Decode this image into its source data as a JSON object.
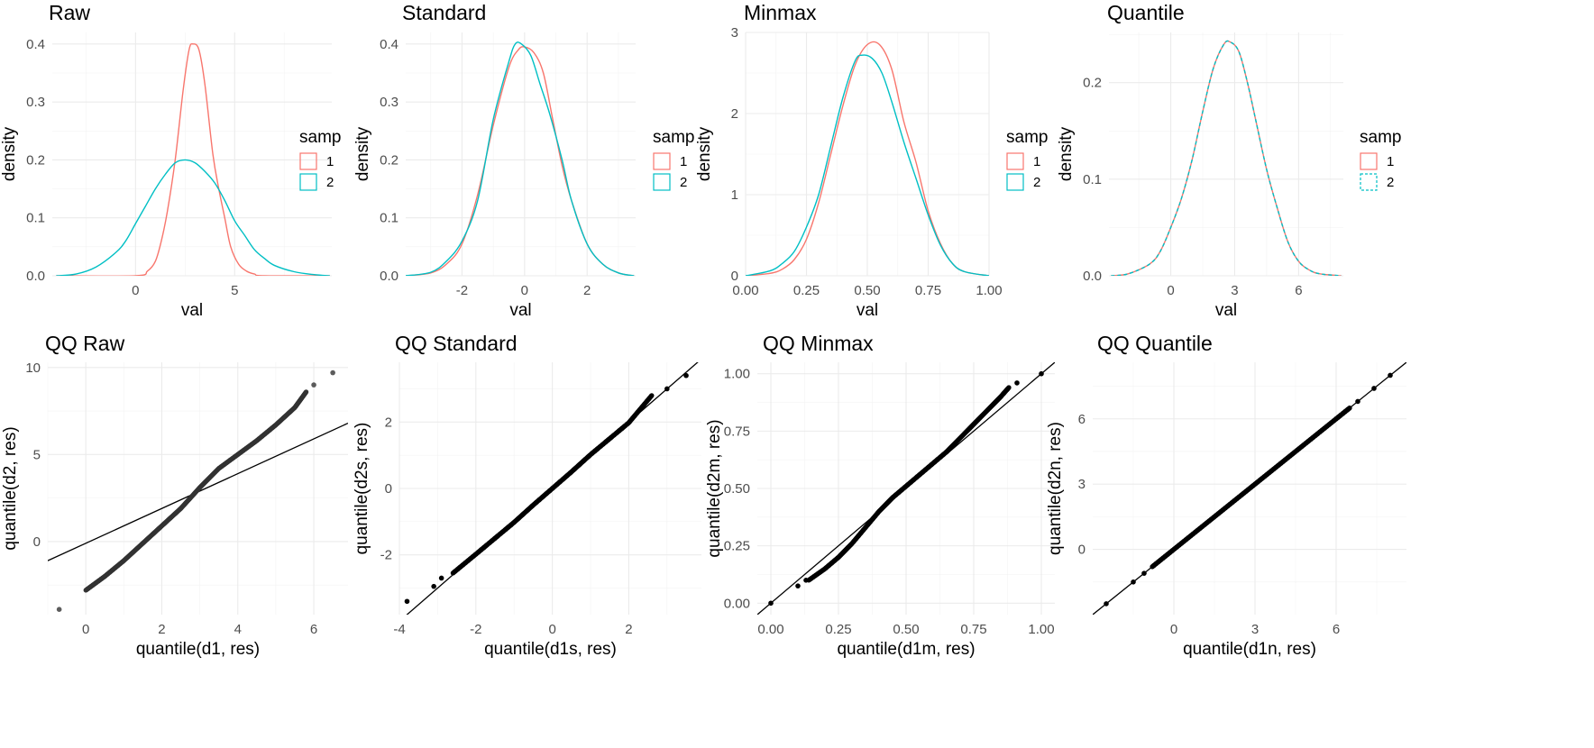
{
  "chart_data": [
    {
      "id": "raw",
      "type": "line",
      "title": "Raw",
      "xlabel": "val",
      "ylabel": "density",
      "xlim": [
        -4.2,
        9.9
      ],
      "ylim": [
        0,
        0.42
      ],
      "xticks": [
        0,
        5,
        10
      ],
      "yticks": [
        0.0,
        0.1,
        0.2,
        0.3,
        0.4
      ],
      "ytick_labels": [
        "0.0",
        "0.1",
        "0.2",
        "0.3",
        "0.4"
      ],
      "legend": {
        "title": "samp",
        "position": "right",
        "entries": [
          "1",
          "2"
        ]
      },
      "series": [
        {
          "name": "1",
          "color": "#F8766D",
          "dash": false,
          "x": [
            -4.0,
            0.0,
            0.6,
            1.0,
            1.3,
            1.6,
            2.0,
            2.4,
            2.7,
            2.9,
            3.2,
            3.5,
            3.9,
            4.2,
            4.5,
            4.8,
            5.2,
            5.6,
            6.0,
            6.5,
            9.8
          ],
          "y": [
            0.0,
            0.0,
            0.008,
            0.025,
            0.06,
            0.11,
            0.2,
            0.32,
            0.39,
            0.4,
            0.39,
            0.33,
            0.21,
            0.15,
            0.1,
            0.05,
            0.02,
            0.008,
            0.003,
            0.0,
            0.0
          ]
        },
        {
          "name": "2",
          "color": "#00BFC4",
          "dash": false,
          "x": [
            -4.0,
            -3.0,
            -2.0,
            -1.0,
            -0.5,
            0.0,
            0.5,
            1.0,
            1.5,
            2.0,
            2.5,
            3.0,
            3.5,
            4.0,
            4.5,
            5.0,
            5.5,
            6.0,
            6.5,
            7.0,
            8.0,
            9.0,
            9.8
          ],
          "y": [
            0.0,
            0.003,
            0.015,
            0.04,
            0.06,
            0.09,
            0.12,
            0.15,
            0.175,
            0.195,
            0.2,
            0.195,
            0.18,
            0.16,
            0.13,
            0.095,
            0.07,
            0.045,
            0.03,
            0.018,
            0.007,
            0.002,
            0.0
          ]
        }
      ]
    },
    {
      "id": "standard",
      "type": "line",
      "title": "Standard",
      "xlabel": "val",
      "ylabel": "density",
      "xlim": [
        -3.8,
        3.55
      ],
      "ylim": [
        0,
        0.42
      ],
      "xticks": [
        -4,
        -2,
        0,
        2
      ],
      "yticks": [
        0.0,
        0.1,
        0.2,
        0.3,
        0.4
      ],
      "ytick_labels": [
        "0.0",
        "0.1",
        "0.2",
        "0.3",
        "0.4"
      ],
      "legend": {
        "title": "samp",
        "position": "right",
        "entries": [
          "1",
          "2"
        ]
      },
      "series": [
        {
          "name": "1",
          "color": "#F8766D",
          "dash": false,
          "x": [
            -3.8,
            -3.0,
            -2.5,
            -2.0,
            -1.5,
            -1.0,
            -0.5,
            -0.2,
            0.0,
            0.3,
            0.6,
            0.9,
            1.2,
            1.5,
            2.0,
            2.5,
            3.0,
            3.5
          ],
          "y": [
            0.0,
            0.005,
            0.02,
            0.055,
            0.14,
            0.26,
            0.36,
            0.39,
            0.395,
            0.385,
            0.35,
            0.27,
            0.19,
            0.13,
            0.055,
            0.02,
            0.005,
            0.0
          ]
        },
        {
          "name": "2",
          "color": "#00BFC4",
          "dash": false,
          "x": [
            -3.8,
            -3.0,
            -2.5,
            -2.0,
            -1.5,
            -1.0,
            -0.5,
            -0.3,
            -0.1,
            0.2,
            0.5,
            0.8,
            1.2,
            1.5,
            2.0,
            2.5,
            3.0,
            3.5
          ],
          "y": [
            0.0,
            0.006,
            0.025,
            0.06,
            0.13,
            0.27,
            0.37,
            0.4,
            0.4,
            0.38,
            0.33,
            0.28,
            0.2,
            0.13,
            0.055,
            0.02,
            0.005,
            0.0
          ]
        }
      ]
    },
    {
      "id": "minmax",
      "type": "line",
      "title": "Minmax",
      "xlabel": "val",
      "ylabel": "density",
      "xlim": [
        0,
        1
      ],
      "ylim": [
        0,
        3.0
      ],
      "xticks": [
        0,
        0.25,
        0.5,
        0.75,
        1.0
      ],
      "xtick_labels": [
        "0.00",
        "0.25",
        "0.50",
        "0.75",
        "1.00"
      ],
      "yticks": [
        0,
        1,
        2,
        3
      ],
      "ytick_labels": [
        "0",
        "1",
        "2",
        "3"
      ],
      "legend": {
        "title": "samp",
        "position": "right",
        "entries": [
          "1",
          "2"
        ]
      },
      "series": [
        {
          "name": "1",
          "color": "#F8766D",
          "dash": false,
          "x": [
            0.0,
            0.1,
            0.15,
            0.2,
            0.25,
            0.3,
            0.35,
            0.4,
            0.45,
            0.5,
            0.55,
            0.6,
            0.65,
            0.7,
            0.75,
            0.8,
            0.85,
            0.9,
            1.0
          ],
          "y": [
            0.0,
            0.03,
            0.08,
            0.2,
            0.45,
            0.9,
            1.5,
            2.1,
            2.6,
            2.85,
            2.85,
            2.55,
            1.9,
            1.4,
            0.8,
            0.4,
            0.15,
            0.05,
            0.0
          ]
        },
        {
          "name": "2",
          "color": "#00BFC4",
          "dash": false,
          "x": [
            0.0,
            0.1,
            0.15,
            0.2,
            0.25,
            0.3,
            0.35,
            0.4,
            0.45,
            0.48,
            0.52,
            0.56,
            0.6,
            0.65,
            0.7,
            0.75,
            0.8,
            0.85,
            0.9,
            1.0
          ],
          "y": [
            0.0,
            0.06,
            0.15,
            0.3,
            0.6,
            1.0,
            1.6,
            2.2,
            2.65,
            2.72,
            2.68,
            2.5,
            2.15,
            1.65,
            1.2,
            0.75,
            0.38,
            0.15,
            0.05,
            0.0
          ]
        }
      ]
    },
    {
      "id": "quantile",
      "type": "line",
      "title": "Quantile",
      "xlabel": "val",
      "ylabel": "density",
      "xlim": [
        -2.9,
        8.1
      ],
      "ylim": [
        0,
        0.252
      ],
      "xticks": [
        0,
        3,
        6
      ],
      "yticks": [
        0.0,
        0.1,
        0.2
      ],
      "ytick_labels": [
        "0.0",
        "0.1",
        "0.2"
      ],
      "legend": {
        "title": "samp",
        "position": "right",
        "entries": [
          "1",
          "2"
        ]
      },
      "series": [
        {
          "name": "1",
          "color": "#F8766D",
          "dash": false,
          "x": [
            -2.8,
            -2.0,
            -1.0,
            -0.5,
            0.0,
            0.5,
            1.0,
            1.5,
            2.0,
            2.5,
            2.8,
            3.2,
            3.6,
            4.0,
            4.5,
            5.0,
            5.5,
            6.0,
            6.5,
            7.0,
            8.0
          ],
          "y": [
            0.0,
            0.002,
            0.012,
            0.025,
            0.05,
            0.08,
            0.12,
            0.17,
            0.215,
            0.24,
            0.242,
            0.232,
            0.2,
            0.16,
            0.11,
            0.07,
            0.035,
            0.015,
            0.006,
            0.002,
            0.0
          ]
        },
        {
          "name": "2",
          "color": "#00BFC4",
          "dash": true,
          "x": [
            -2.8,
            -2.0,
            -1.0,
            -0.5,
            0.0,
            0.5,
            1.0,
            1.5,
            2.0,
            2.5,
            2.8,
            3.2,
            3.6,
            4.0,
            4.5,
            5.0,
            5.5,
            6.0,
            6.5,
            7.0,
            8.0
          ],
          "y": [
            0.0,
            0.002,
            0.012,
            0.025,
            0.05,
            0.08,
            0.12,
            0.17,
            0.215,
            0.24,
            0.242,
            0.232,
            0.2,
            0.16,
            0.11,
            0.07,
            0.035,
            0.015,
            0.006,
            0.002,
            0.0
          ]
        }
      ]
    },
    {
      "id": "qqraw",
      "type": "scatter",
      "title": "QQ Raw",
      "xlabel": "quantile(d1, res)",
      "ylabel": "quantile(d2, res)",
      "xlim": [
        -1.0,
        6.9
      ],
      "ylim": [
        -4.2,
        10.3
      ],
      "xticks": [
        0,
        2,
        4,
        6
      ],
      "yticks": [
        0,
        5,
        10
      ],
      "point_color": "#333333",
      "point_alpha": 0.8,
      "qq_curve": {
        "x": [
          0.0,
          0.5,
          1.0,
          1.5,
          2.0,
          2.5,
          3.0,
          3.5,
          4.0,
          4.5,
          5.0,
          5.5,
          5.8
        ],
        "y": [
          -2.8,
          -2.0,
          -1.1,
          -0.1,
          0.9,
          1.9,
          3.1,
          4.2,
          5.0,
          5.8,
          6.7,
          7.7,
          8.6
        ]
      },
      "outliers": {
        "x": [
          -0.7,
          6.0,
          6.5
        ],
        "y": [
          -3.9,
          9.0,
          9.7
        ]
      },
      "reference_line": {
        "intercept": -0.1,
        "slope": 1.0
      }
    },
    {
      "id": "qqstandard",
      "type": "scatter",
      "title": "QQ Standard",
      "xlabel": "quantile(d1s, res)",
      "ylabel": "quantile(d2s, res)",
      "xlim": [
        -4.0,
        3.9
      ],
      "ylim": [
        -3.8,
        3.8
      ],
      "xticks": [
        -4,
        -2,
        0,
        2
      ],
      "yticks": [
        -2,
        0,
        2
      ],
      "point_color": "#000000",
      "point_alpha": 1.0,
      "qq_curve": {
        "x": [
          -2.6,
          -2.0,
          -1.5,
          -1.0,
          -0.5,
          0.0,
          0.5,
          1.0,
          1.5,
          2.0,
          2.6
        ],
        "y": [
          -2.55,
          -1.98,
          -1.5,
          -1.02,
          -0.5,
          0.0,
          0.5,
          1.02,
          1.5,
          1.98,
          2.8
        ]
      },
      "outliers": {
        "x": [
          -3.8,
          -3.1,
          -2.9,
          3.0,
          3.5
        ],
        "y": [
          -3.4,
          -2.95,
          -2.7,
          3.0,
          3.4
        ]
      },
      "reference_line": {
        "intercept": 0.0,
        "slope": 1.0
      }
    },
    {
      "id": "qqminmax",
      "type": "scatter",
      "title": "QQ Minmax",
      "xlabel": "quantile(d1m, res)",
      "ylabel": "quantile(d2m, res)",
      "xlim": [
        -0.05,
        1.05
      ],
      "ylim": [
        -0.05,
        1.05
      ],
      "xticks": [
        0.0,
        0.25,
        0.5,
        0.75,
        1.0
      ],
      "xtick_labels": [
        "0.00",
        "0.25",
        "0.50",
        "0.75",
        "1.00"
      ],
      "yticks": [
        0.0,
        0.25,
        0.5,
        0.75,
        1.0
      ],
      "ytick_labels": [
        "0.00",
        "0.25",
        "0.50",
        "0.75",
        "1.00"
      ],
      "point_color": "#000000",
      "point_alpha": 1.0,
      "qq_curve": {
        "x": [
          0.14,
          0.2,
          0.25,
          0.3,
          0.35,
          0.4,
          0.45,
          0.5,
          0.55,
          0.6,
          0.65,
          0.7,
          0.75,
          0.8,
          0.85,
          0.88
        ],
        "y": [
          0.1,
          0.15,
          0.2,
          0.26,
          0.33,
          0.4,
          0.46,
          0.51,
          0.56,
          0.61,
          0.66,
          0.72,
          0.78,
          0.84,
          0.9,
          0.94
        ]
      },
      "outliers": {
        "x": [
          0.0,
          0.1,
          0.13,
          0.91,
          1.0
        ],
        "y": [
          0.0,
          0.075,
          0.1,
          0.96,
          1.0
        ]
      },
      "reference_line": {
        "intercept": 0.0,
        "slope": 1.0
      }
    },
    {
      "id": "qqquantile",
      "type": "scatter",
      "title": "QQ Quantile",
      "xlabel": "quantile(d1n, res)",
      "ylabel": "quantile(d2n, res)",
      "xlim": [
        -3.0,
        8.6
      ],
      "ylim": [
        -3.0,
        8.6
      ],
      "xticks": [
        0,
        3,
        6
      ],
      "yticks": [
        0,
        3,
        6
      ],
      "point_color": "#000000",
      "point_alpha": 1.0,
      "qq_curve": {
        "x": [
          -0.8,
          0.0,
          1.0,
          2.0,
          3.0,
          4.0,
          5.0,
          6.0,
          6.5
        ],
        "y": [
          -0.8,
          0.0,
          1.0,
          2.0,
          3.0,
          4.0,
          5.0,
          6.0,
          6.5
        ]
      },
      "outliers": {
        "x": [
          -2.5,
          -1.5,
          -1.1,
          6.8,
          7.4,
          8.0
        ],
        "y": [
          -2.5,
          -1.5,
          -1.1,
          6.8,
          7.4,
          8.0
        ]
      },
      "reference_line": {
        "intercept": 0.0,
        "slope": 1.0
      }
    }
  ]
}
